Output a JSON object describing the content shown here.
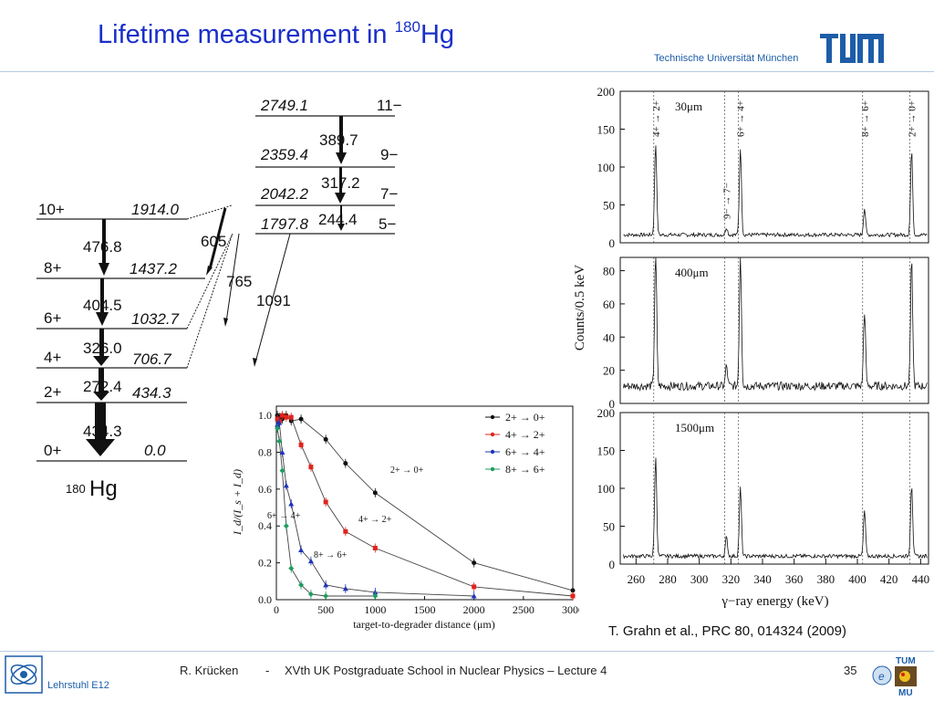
{
  "slide": {
    "title_main": "Lifetime measurement in ",
    "title_mass": "180",
    "title_element": "Hg",
    "university": "Technische Universität München",
    "tum_logo": "TUM",
    "citation": "T. Grahn et al., PRC 80, 014324 (2009)",
    "footer": {
      "author": "R. Krücken",
      "separator": "-",
      "lecture": "XVth UK Postgraduate School in Nuclear Physics – Lecture 4",
      "page": "35",
      "chair": "Lehrstuhl E12",
      "logo_tum": "TUM",
      "logo_mu": "MU"
    },
    "colors": {
      "title": "#1a2fc8",
      "tum_blue": "#1d5da8",
      "rule": "#b7cbe4"
    }
  },
  "level_scheme": {
    "nucleus_mass": "180",
    "nucleus_element": "Hg",
    "levels": [
      {
        "spin": "0+",
        "energy": "0.0"
      },
      {
        "spin": "2+",
        "energy": "434.3"
      },
      {
        "spin": "4+",
        "energy": "706.7"
      },
      {
        "spin": "6+",
        "energy": "1032.7"
      },
      {
        "spin": "8+",
        "energy": "1437.2"
      },
      {
        "spin": "10+",
        "energy": "1914.0"
      },
      {
        "spin": "5−",
        "energy": "1797.8"
      },
      {
        "spin": "7−",
        "energy": "2042.2"
      },
      {
        "spin": "9−",
        "energy": "2359.4"
      },
      {
        "spin": "11−",
        "energy": "2749.1"
      }
    ],
    "transitions": [
      "434.3",
      "272.4",
      "326.0",
      "404.5",
      "476.8",
      "244.4",
      "317.2",
      "389.7",
      "605",
      "765",
      "1091"
    ]
  },
  "chart_data": [
    {
      "type": "scatter",
      "title": "",
      "xlabel": "target-to-degrader distance (μm)",
      "ylabel": "I_d/(I_s + I_d)",
      "xlim": [
        0,
        3000
      ],
      "ylim": [
        0,
        1.05
      ],
      "xticks": [
        "0",
        "500",
        "1000",
        "1500",
        "2000",
        "2500",
        "3000"
      ],
      "yticks": [
        "0.0",
        "0.2",
        "0.4",
        "0.6",
        "0.8",
        "1.0"
      ],
      "legend_position": "top-right",
      "annotations": [
        "2+ → 0+",
        "4+ → 2+",
        "6+ → 4+",
        "8+ → 6+"
      ],
      "series": [
        {
          "name": "2+ → 0+",
          "color": "#111111",
          "marker": "circle",
          "x": [
            10,
            30,
            60,
            100,
            150,
            250,
            500,
            700,
            1000,
            2000,
            3000
          ],
          "y": [
            1.0,
            0.99,
            0.98,
            1.0,
            0.97,
            0.98,
            0.87,
            0.74,
            0.58,
            0.2,
            0.05
          ]
        },
        {
          "name": "4+ → 2+",
          "color": "#e0241c",
          "marker": "square",
          "x": [
            10,
            30,
            60,
            100,
            150,
            250,
            350,
            500,
            700,
            1000,
            2000,
            3000
          ],
          "y": [
            0.98,
            0.97,
            1.0,
            0.99,
            0.99,
            0.84,
            0.72,
            0.53,
            0.37,
            0.28,
            0.07,
            0.02
          ]
        },
        {
          "name": "6+ → 4+",
          "color": "#1f35b8",
          "marker": "triangle",
          "x": [
            10,
            30,
            60,
            100,
            150,
            250,
            350,
            500,
            700,
            1000,
            2000
          ],
          "y": [
            0.95,
            0.96,
            0.8,
            0.62,
            0.52,
            0.27,
            0.21,
            0.08,
            0.06,
            0.04,
            0.02
          ]
        },
        {
          "name": "8+ → 6+",
          "color": "#1e9c5e",
          "marker": "diamond",
          "x": [
            10,
            30,
            60,
            100,
            150,
            250,
            350,
            500,
            1000
          ],
          "y": [
            0.93,
            0.86,
            0.7,
            0.4,
            0.17,
            0.08,
            0.03,
            0.02,
            0.02
          ]
        }
      ]
    },
    {
      "type": "line",
      "title": "",
      "xlabel": "γ−ray energy (keV)",
      "ylabel": "Counts/0.5 keV",
      "xlim": [
        250,
        445
      ],
      "xticks": [
        "260",
        "280",
        "300",
        "320",
        "340",
        "360",
        "380",
        "400",
        "420",
        "440"
      ],
      "series": [
        {
          "name": "30μm",
          "ylim": [
            0,
            200
          ],
          "yticks": [
            "0",
            "50",
            "100",
            "150",
            "200"
          ],
          "peaks_keV": [
            272.4,
            317.2,
            326.0,
            404.5,
            434.3
          ],
          "heights": [
            120,
            10,
            115,
            35,
            110
          ]
        },
        {
          "name": "400μm",
          "ylim": [
            0,
            88
          ],
          "yticks": [
            "0",
            "20",
            "40",
            "60",
            "80"
          ],
          "peaks_keV": [
            272.4,
            317.2,
            326.0,
            404.5,
            434.3
          ],
          "heights": [
            82,
            12,
            80,
            45,
            75
          ]
        },
        {
          "name": "1500μm",
          "ylim": [
            0,
            200
          ],
          "yticks": [
            "0",
            "50",
            "100",
            "150",
            "200"
          ],
          "peaks_keV": [
            272.4,
            317.2,
            326.0,
            404.5,
            434.3
          ],
          "heights": [
            130,
            25,
            90,
            60,
            95
          ]
        }
      ],
      "transition_labels": [
        "4+ → 2+",
        "9− → 7−",
        "6+ → 4+",
        "8+ → 6+",
        "2+ → 0+"
      ]
    }
  ]
}
